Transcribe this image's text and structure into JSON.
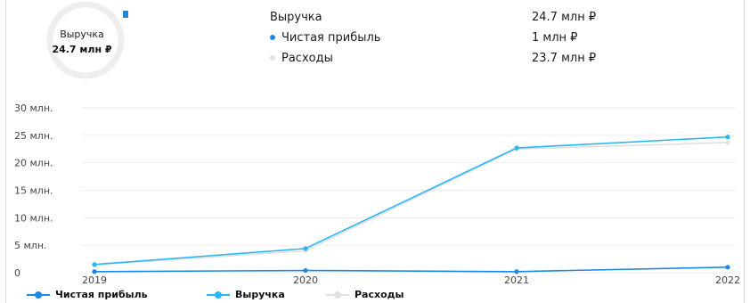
{
  "summary": {
    "donut_label": "Выручка",
    "donut_value": "24.7 млн ₽",
    "rows": [
      {
        "name": "Выручка",
        "value": "24.7 млн ₽",
        "has_dot": false
      },
      {
        "name": "Чистая прибыль",
        "value": "1 млн ₽",
        "has_dot": true,
        "color": "#1e88e5"
      },
      {
        "name": "Расходы",
        "value": "23.7 млн ₽",
        "has_dot": true,
        "color": "#e3e3e3"
      }
    ]
  },
  "chart_data": {
    "type": "line",
    "x": [
      "2019",
      "2020",
      "2021",
      "2022"
    ],
    "y_ticks": [
      {
        "value": 30,
        "label": "30 млн."
      },
      {
        "value": 25,
        "label": "25 млн."
      },
      {
        "value": 20,
        "label": "20 млн."
      },
      {
        "value": 15,
        "label": "15 млн."
      },
      {
        "value": 10,
        "label": "10 млн."
      },
      {
        "value": 5,
        "label": "5 млн."
      },
      {
        "value": 0,
        "label": "0"
      }
    ],
    "ylim": [
      0,
      30
    ],
    "grid": true,
    "legend_position": "bottom-left",
    "series": [
      {
        "name": "Чистая прибыль",
        "values": [
          0.2,
          0.4,
          0.2,
          1.0
        ],
        "color": "#1e88e5"
      },
      {
        "name": "Выручка",
        "values": [
          1.5,
          4.4,
          22.7,
          24.7
        ],
        "color": "#29b6f6"
      },
      {
        "name": "Расходы",
        "values": [
          1.4,
          4.0,
          22.5,
          23.7
        ],
        "color": "#e0e0e0"
      }
    ]
  }
}
